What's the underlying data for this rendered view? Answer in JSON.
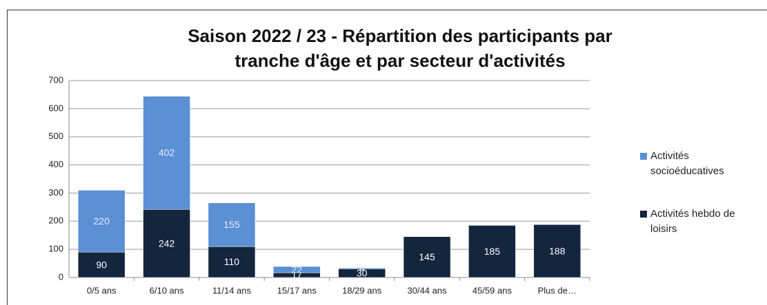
{
  "chart_data": {
    "type": "stacked_bar",
    "title": "Saison 2022 / 23 - Répartition des participants par tranche d'âge et par secteur d'activités",
    "categories": [
      "0/5 ans",
      "6/10 ans",
      "11/14 ans",
      "15/17 ans",
      "18/29 ans",
      "30/44 ans",
      "45/59 ans",
      "Plus de…"
    ],
    "series": [
      {
        "name": "Activités hebdo de loisirs",
        "color": "#14253e",
        "values": [
          90,
          242,
          110,
          17,
          30,
          145,
          185,
          188
        ]
      },
      {
        "name": "Activités socioéducatives",
        "color": "#5b8fd6",
        "values": [
          220,
          402,
          155,
          22,
          4,
          null,
          null,
          null
        ]
      }
    ],
    "ylim": [
      0,
      700
    ],
    "yticks": [
      0,
      100,
      200,
      300,
      400,
      500,
      600,
      700
    ],
    "grid": true,
    "legend": "right"
  }
}
